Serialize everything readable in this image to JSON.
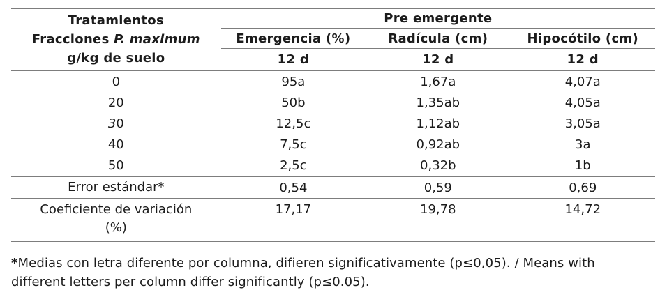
{
  "colors": {
    "rule": "#7d7d7d",
    "text": "#1c1c1c",
    "background": "#ffffff"
  },
  "table": {
    "group_header": "Pre emergente",
    "corner_header": {
      "line1": "Tratamientos",
      "line2_prefix": "Fracciones ",
      "line2_species": "P. maximum",
      "line3": "g/kg de suelo"
    },
    "columns": [
      {
        "label": "Emergencia (%)",
        "period": "12 d"
      },
      {
        "label": "Radícula (cm)",
        "period": "12 d"
      },
      {
        "label": "Hipocótilo (cm)",
        "period": "12 d"
      }
    ],
    "rows": [
      {
        "treatment": "0",
        "values": [
          "95a",
          "1,67a",
          "4,07a"
        ]
      },
      {
        "treatment": "20",
        "values": [
          "50b",
          "1,35ab",
          "4,05a"
        ]
      },
      {
        "treatment": "30",
        "italic_first": true,
        "values": [
          "12,5c",
          "1,12ab",
          "3,05a"
        ]
      },
      {
        "treatment": "40",
        "values": [
          "7,5c",
          "0,92ab",
          "3a"
        ]
      },
      {
        "treatment": "50",
        "values": [
          "2,5c",
          "0,32b",
          "1b"
        ]
      }
    ],
    "summary_rows": [
      {
        "label": "Error estándar*",
        "values": [
          "0,54",
          "0,59",
          "0,69"
        ]
      },
      {
        "label": "Coeficiente de variación (%)",
        "values": [
          "17,17",
          "19,78",
          "14,72"
        ]
      }
    ]
  },
  "footnote": {
    "marker": "*",
    "text": "Medias con letra diferente por columna, difieren significativamente (p≤0,05). / Means with different letters per column differ significantly (p≤0.05)."
  }
}
